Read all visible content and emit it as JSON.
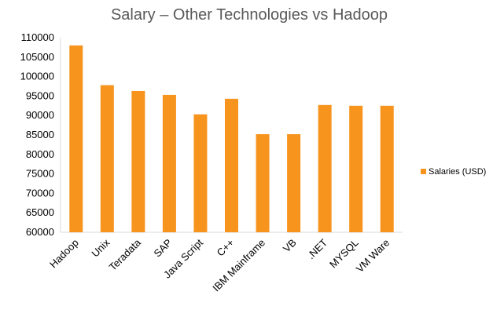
{
  "chart_data": {
    "type": "bar",
    "title": "Salary – Other Technologies vs Hadoop",
    "xlabel": "",
    "ylabel": "",
    "categories": [
      "Hadoop",
      "Unix",
      "Teradata",
      "SAP",
      "Java Script",
      "C++",
      "IBM Mainframe",
      "VB",
      ".NET",
      "MYSQL",
      "VM Ware"
    ],
    "series": [
      {
        "name": "Salaries (USD)",
        "color": "#f7941d",
        "values": [
          108000,
          97800,
          96300,
          95300,
          90300,
          94300,
          85200,
          85200,
          92700,
          92500,
          92500
        ]
      }
    ],
    "ylim": [
      60000,
      110000
    ],
    "yticks": [
      60000,
      65000,
      70000,
      75000,
      80000,
      85000,
      90000,
      95000,
      100000,
      105000,
      110000
    ],
    "grid": false,
    "legend_position": "right"
  }
}
